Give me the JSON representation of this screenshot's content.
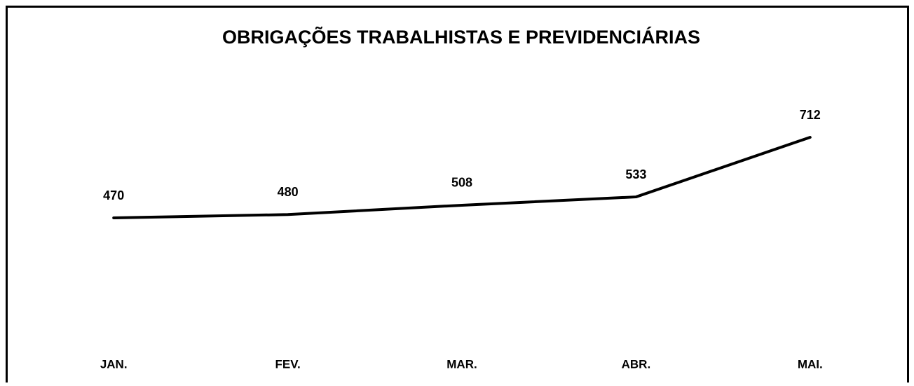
{
  "chart_data": {
    "type": "line",
    "title": "OBRIGAÇÕES TRABALHISTAS E PREVIDENCIÁRIAS",
    "categories": [
      "JAN.",
      "FEV.",
      "MAR.",
      "ABR.",
      "MAI."
    ],
    "series": [
      {
        "color": "#000000",
        "values": [
          470,
          480,
          508,
          533,
          712
        ]
      }
    ]
  }
}
